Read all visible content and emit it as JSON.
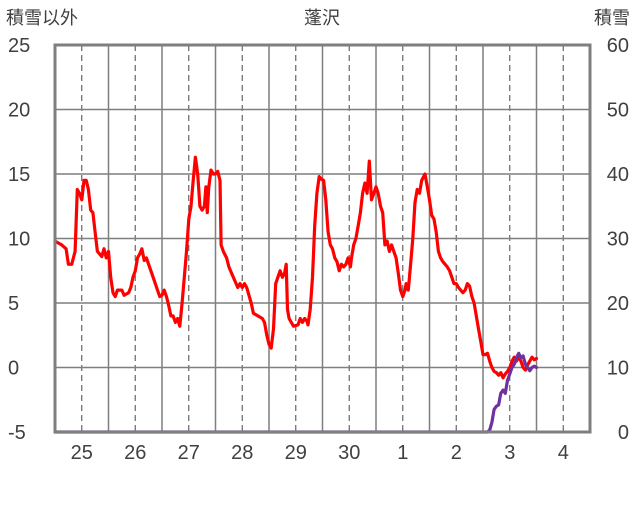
{
  "chart_data": {
    "type": "line",
    "title": "蓬沢",
    "ylabel_left": "積雪以外",
    "ylabel_right": "積雪",
    "ylim_left": [
      -5,
      25
    ],
    "ylim_right": [
      0,
      60
    ],
    "yticks_left": [
      "25",
      "20",
      "15",
      "10",
      "5",
      "0",
      "-5"
    ],
    "yticks_right": [
      "60",
      "50",
      "40",
      "30",
      "20",
      "10",
      "0"
    ],
    "xticks": [
      "25",
      "26",
      "27",
      "28",
      "29",
      "30",
      "1",
      "2",
      "3",
      "4"
    ],
    "x_hours_start": 0,
    "x_hours_end": 240,
    "grid": true,
    "series": [
      {
        "axis": "left",
        "color": "#ff0000",
        "points": [
          [
            0,
            9.8
          ],
          [
            3,
            9.5
          ],
          [
            5,
            9.2
          ],
          [
            6,
            8
          ],
          [
            7.5,
            8
          ],
          [
            9,
            9
          ],
          [
            10,
            13.8
          ],
          [
            11,
            13.5
          ],
          [
            12,
            13
          ],
          [
            13,
            14.5
          ],
          [
            14,
            14.5
          ],
          [
            15,
            13.8
          ],
          [
            16,
            12.2
          ],
          [
            17,
            12
          ],
          [
            18,
            10.5
          ],
          [
            19,
            9
          ],
          [
            20,
            8.8
          ],
          [
            21,
            8.6
          ],
          [
            22,
            9.2
          ],
          [
            23,
            8.5
          ],
          [
            24,
            9
          ],
          [
            25,
            7
          ],
          [
            26,
            5.8
          ],
          [
            27,
            5.5
          ],
          [
            28,
            6
          ],
          [
            30,
            6
          ],
          [
            31,
            5.6
          ],
          [
            33,
            5.8
          ],
          [
            34,
            6.2
          ],
          [
            35,
            7
          ],
          [
            36,
            7.5
          ],
          [
            37,
            8.5
          ],
          [
            38,
            8.8
          ],
          [
            39,
            9.2
          ],
          [
            40,
            8.3
          ],
          [
            41,
            8.5
          ],
          [
            42,
            8
          ],
          [
            43,
            7.5
          ],
          [
            44,
            7
          ],
          [
            45,
            6.5
          ],
          [
            46,
            6
          ],
          [
            47,
            5.5
          ],
          [
            48,
            5.6
          ],
          [
            49,
            6
          ],
          [
            50,
            5.5
          ],
          [
            51,
            4.8
          ],
          [
            52,
            4
          ],
          [
            53,
            4
          ],
          [
            54,
            3.5
          ],
          [
            55,
            3.8
          ],
          [
            56,
            3.2
          ],
          [
            57,
            5
          ],
          [
            58,
            7
          ],
          [
            59,
            9
          ],
          [
            60,
            11.5
          ],
          [
            61,
            12.5
          ],
          [
            62,
            14.5
          ],
          [
            63,
            16.3
          ],
          [
            64,
            15
          ],
          [
            65,
            12.5
          ],
          [
            66,
            12.2
          ],
          [
            67,
            12.5
          ],
          [
            67.7,
            14
          ],
          [
            68.3,
            12
          ],
          [
            69,
            14
          ],
          [
            70,
            15.3
          ],
          [
            71,
            15
          ],
          [
            72,
            15
          ],
          [
            73,
            15.2
          ],
          [
            74,
            14.5
          ],
          [
            74.5,
            9.5
          ],
          [
            75.5,
            9
          ],
          [
            77,
            8.5
          ],
          [
            78,
            7.8
          ],
          [
            80,
            7
          ],
          [
            82,
            6.2
          ],
          [
            83,
            6.5
          ],
          [
            84,
            6.2
          ],
          [
            85,
            6.5
          ],
          [
            86,
            6.2
          ],
          [
            88,
            5
          ],
          [
            89,
            4.2
          ],
          [
            91,
            4
          ],
          [
            93,
            3.8
          ],
          [
            94,
            3.5
          ],
          [
            95,
            2.5
          ],
          [
            96,
            1.8
          ],
          [
            97,
            1.5
          ],
          [
            98,
            3
          ],
          [
            99,
            6.5
          ],
          [
            100,
            7
          ],
          [
            101,
            7.5
          ],
          [
            102,
            7
          ],
          [
            103,
            7.3
          ],
          [
            103.7,
            8
          ],
          [
            104.3,
            4.5
          ],
          [
            105,
            3.8
          ],
          [
            106,
            3.5
          ],
          [
            107,
            3.2
          ],
          [
            109,
            3.3
          ],
          [
            110,
            3.8
          ],
          [
            111,
            3.5
          ],
          [
            112,
            3.8
          ],
          [
            113,
            3.6
          ],
          [
            113.5,
            3.3
          ],
          [
            114.5,
            4.5
          ],
          [
            115.5,
            7
          ],
          [
            116.5,
            11
          ],
          [
            117.5,
            13.5
          ],
          [
            118.5,
            14.8
          ],
          [
            119.5,
            14.6
          ],
          [
            120.5,
            14.5
          ],
          [
            121.5,
            13
          ],
          [
            122.5,
            10.5
          ],
          [
            123.5,
            9.5
          ],
          [
            124.5,
            9.2
          ],
          [
            125.5,
            8.5
          ],
          [
            126.5,
            8.2
          ],
          [
            127.5,
            7.5
          ],
          [
            128.5,
            8
          ],
          [
            129.5,
            7.8
          ],
          [
            130.5,
            8
          ],
          [
            131.5,
            8.5
          ],
          [
            132.5,
            7.8
          ],
          [
            133,
            8.5
          ],
          [
            134,
            9.5
          ],
          [
            135,
            10
          ],
          [
            136,
            11
          ],
          [
            137,
            12
          ],
          [
            138,
            13.5
          ],
          [
            139,
            14.3
          ],
          [
            140,
            13.5
          ],
          [
            141,
            16
          ],
          [
            142,
            13
          ],
          [
            143,
            13.5
          ],
          [
            144,
            14
          ],
          [
            145,
            13.5
          ],
          [
            146,
            12.5
          ],
          [
            147,
            12
          ],
          [
            148,
            9.5
          ],
          [
            149,
            9.8
          ],
          [
            150,
            9
          ],
          [
            151,
            9.5
          ],
          [
            152,
            9
          ],
          [
            153,
            8.5
          ],
          [
            154,
            7.3
          ],
          [
            155,
            6
          ],
          [
            156,
            5.5
          ],
          [
            157,
            6
          ],
          [
            157.5,
            6.5
          ],
          [
            158.5,
            6
          ],
          [
            159.5,
            8
          ],
          [
            160.5,
            10
          ],
          [
            161.5,
            12.8
          ],
          [
            162.5,
            13.8
          ],
          [
            163.5,
            13.5
          ],
          [
            164.5,
            14.5
          ],
          [
            166,
            15
          ],
          [
            167,
            14
          ],
          [
            168,
            13
          ],
          [
            169,
            11.8
          ],
          [
            170,
            11.5
          ],
          [
            171,
            10.5
          ],
          [
            172,
            9
          ],
          [
            173,
            8.5
          ],
          [
            174,
            8.2
          ],
          [
            175,
            8
          ],
          [
            176,
            7.8
          ],
          [
            177,
            7.5
          ],
          [
            178,
            7
          ],
          [
            179,
            6.5
          ],
          [
            180,
            6.5
          ],
          [
            181,
            6.2
          ],
          [
            182,
            6
          ],
          [
            183,
            5.8
          ],
          [
            184,
            6
          ],
          [
            185,
            6.5
          ],
          [
            186,
            6.3
          ],
          [
            187,
            5.5
          ],
          [
            188,
            5
          ],
          [
            189,
            4
          ],
          [
            190,
            3
          ],
          [
            191,
            2
          ],
          [
            192,
            1
          ],
          [
            193,
            1
          ],
          [
            194,
            1.1
          ],
          [
            195,
            0.5
          ],
          [
            196,
            0
          ],
          [
            197,
            -0.3
          ],
          [
            198,
            -0.4
          ],
          [
            199,
            -0.6
          ],
          [
            200,
            -0.4
          ],
          [
            201,
            -0.8
          ],
          [
            202,
            -0.5
          ],
          [
            203,
            -0.3
          ],
          [
            204,
            0
          ],
          [
            205,
            0.5
          ],
          [
            206,
            0.8
          ],
          [
            207,
            0.5
          ],
          [
            208,
            0.8
          ],
          [
            209,
            0.5
          ],
          [
            210,
            0
          ],
          [
            211,
            -0.2
          ],
          [
            212,
            0.2
          ],
          [
            213,
            0.5
          ],
          [
            214,
            0.8
          ],
          [
            215,
            0.6
          ],
          [
            216,
            0.7
          ]
        ]
      },
      {
        "axis": "right",
        "color": "#7030a0",
        "points": [
          [
            0,
            0
          ],
          [
            194,
            0
          ],
          [
            195,
            0.3
          ],
          [
            196,
            1.5
          ],
          [
            197,
            3.5
          ],
          [
            198,
            4
          ],
          [
            199,
            4.2
          ],
          [
            200,
            6
          ],
          [
            201,
            6.5
          ],
          [
            202,
            6
          ],
          [
            203,
            8
          ],
          [
            204,
            9
          ],
          [
            205,
            10
          ],
          [
            206,
            10.5
          ],
          [
            207,
            11.5
          ],
          [
            208,
            12.2
          ],
          [
            209,
            11.5
          ],
          [
            210,
            11.8
          ],
          [
            211,
            10.5
          ],
          [
            212,
            10
          ],
          [
            213,
            9.5
          ],
          [
            214,
            10
          ],
          [
            215,
            10.2
          ],
          [
            216,
            10
          ]
        ]
      }
    ]
  }
}
